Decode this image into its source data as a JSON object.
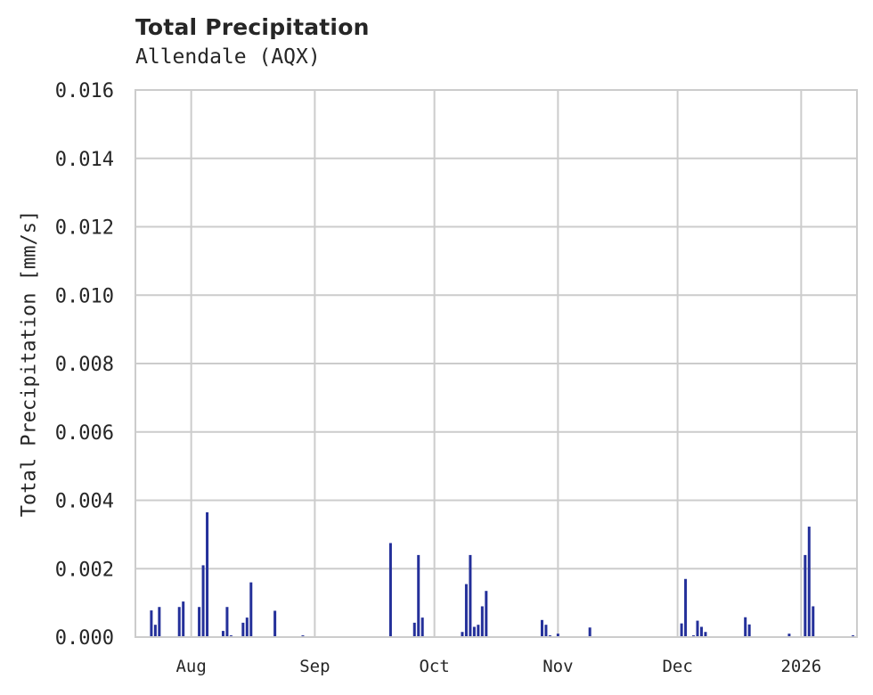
{
  "chart_data": {
    "type": "bar",
    "title": "Total Precipitation",
    "subtitle": "Allendale (AQX)",
    "xlabel": "",
    "ylabel": "Total Precipitation [mm/s]",
    "ylim": [
      0,
      0.016
    ],
    "yticks": [
      "0.000",
      "0.002",
      "0.004",
      "0.006",
      "0.008",
      "0.010",
      "0.012",
      "0.014",
      "0.016"
    ],
    "xlim": [
      "2025-07-18",
      "2026-01-15"
    ],
    "xticks": [
      {
        "label": "Aug",
        "date": "2025-08-01"
      },
      {
        "label": "Sep",
        "date": "2025-09-01"
      },
      {
        "label": "Oct",
        "date": "2025-10-01"
      },
      {
        "label": "Nov",
        "date": "2025-11-01"
      },
      {
        "label": "Dec",
        "date": "2025-12-01"
      },
      {
        "label": "2026",
        "date": "2026-01-01"
      }
    ],
    "grid": true,
    "bar_color": "#24309a",
    "x": [
      "2025-07-22",
      "2025-07-23",
      "2025-07-24",
      "2025-07-29",
      "2025-07-30",
      "2025-08-03",
      "2025-08-04",
      "2025-08-05",
      "2025-08-09",
      "2025-08-10",
      "2025-08-11",
      "2025-08-14",
      "2025-08-15",
      "2025-08-16",
      "2025-08-22",
      "2025-08-29",
      "2025-09-20",
      "2025-09-26",
      "2025-09-27",
      "2025-09-28",
      "2025-10-08",
      "2025-10-09",
      "2025-10-10",
      "2025-10-11",
      "2025-10-12",
      "2025-10-13",
      "2025-10-14",
      "2025-10-28",
      "2025-10-29",
      "2025-10-30",
      "2025-11-01",
      "2025-11-09",
      "2025-12-02",
      "2025-12-03",
      "2025-12-05",
      "2025-12-06",
      "2025-12-07",
      "2025-12-08",
      "2025-12-18",
      "2025-12-19",
      "2025-12-29",
      "2026-01-02",
      "2026-01-03",
      "2026-01-04",
      "2026-01-14"
    ],
    "values": [
      0.00078,
      0.00036,
      0.00088,
      0.00088,
      0.00104,
      0.00088,
      0.0021,
      0.00365,
      0.00018,
      0.00088,
      5e-05,
      0.00042,
      0.00057,
      0.0016,
      0.00077,
      5e-05,
      0.00275,
      0.00042,
      0.0024,
      0.00057,
      0.00015,
      0.00155,
      0.0024,
      0.0003,
      0.00036,
      0.0009,
      0.00135,
      0.0005,
      0.00036,
      5e-05,
      0.0001,
      0.00028,
      0.0004,
      0.0017,
      5e-05,
      0.00048,
      0.0003,
      0.00015,
      0.00058,
      0.00037,
      0.0001,
      0.0024,
      0.00323,
      0.0009,
      5e-05
    ]
  }
}
